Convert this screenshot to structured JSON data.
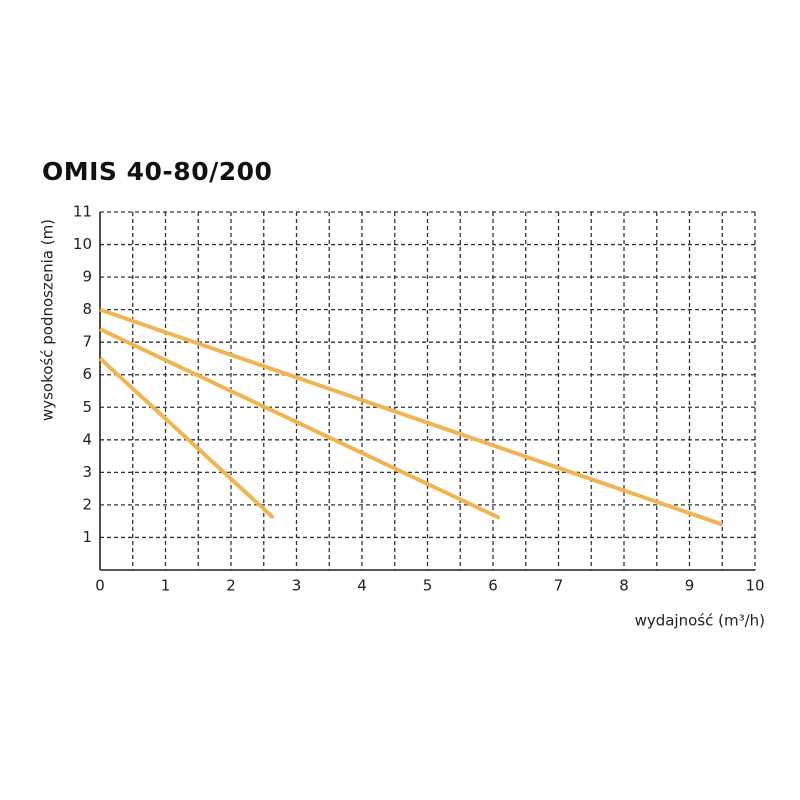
{
  "chart_data": {
    "type": "line",
    "title": "OMIS 40-80/200",
    "x_label": "wydajność (m³/h)",
    "y_label": "wysokość podnoszenia (m)",
    "xlim": [
      0,
      10
    ],
    "xticks": [
      0,
      1,
      2,
      3,
      4,
      5,
      6,
      7,
      8,
      9,
      10
    ],
    "ylim": [
      0,
      11
    ],
    "yticks": [
      1,
      2,
      3,
      4,
      5,
      6,
      7,
      8,
      9,
      10,
      11
    ],
    "grid": true,
    "series": [
      {
        "color": "#f0b553",
        "x": [
          0,
          2.65
        ],
        "values": [
          6.5,
          1.6
        ]
      },
      {
        "color": "#f0b553",
        "x": [
          0,
          6.1
        ],
        "values": [
          7.4,
          1.6
        ]
      },
      {
        "color": "#f0b553",
        "x": [
          0,
          9.5
        ],
        "values": [
          8.0,
          1.4
        ]
      }
    ]
  }
}
